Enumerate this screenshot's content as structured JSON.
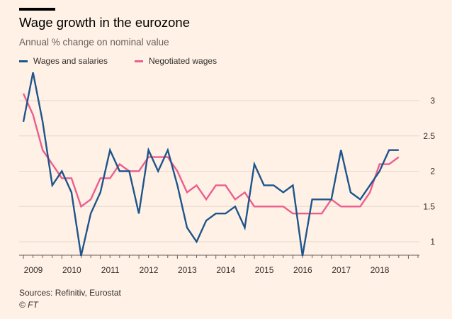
{
  "header": {
    "title": "Wage growth in the eurozone",
    "subtitle": "Annual % change on nominal value"
  },
  "legend": {
    "series_a": "Wages and salaries",
    "series_b": "Negotiated wages"
  },
  "footer": {
    "source": "Sources: Refinitiv, Eurostat",
    "credit": "© FT"
  },
  "colors": {
    "background": "#fff1e5",
    "wages_and_salaries": "#1e558c",
    "negotiated_wages": "#eb5e8d",
    "gridline": "#e3d7cc"
  },
  "chart_data": {
    "type": "line",
    "title": "Wage growth in the eurozone",
    "subtitle": "Annual % change on nominal value",
    "xlabel": "",
    "ylabel": "",
    "y_axis_position": "right",
    "ylim": [
      0.8,
      3.5
    ],
    "yticks": [
      "3",
      "2.5",
      "2",
      "1.5",
      "1"
    ],
    "ytick_values": [
      3,
      2.5,
      2,
      1.5,
      1
    ],
    "xlim": [
      2009.0,
      2019.25
    ],
    "xticks": [
      "2009",
      "2010",
      "2011",
      "2012",
      "2013",
      "2014",
      "2015",
      "2016",
      "2017",
      "2018"
    ],
    "grid": true,
    "legend_position": "top-left",
    "x": [
      2009.0,
      2009.25,
      2009.5,
      2009.75,
      2010.0,
      2010.25,
      2010.5,
      2010.75,
      2011.0,
      2011.25,
      2011.5,
      2011.75,
      2012.0,
      2012.25,
      2012.5,
      2012.75,
      2013.0,
      2013.25,
      2013.5,
      2013.75,
      2014.0,
      2014.25,
      2014.5,
      2014.75,
      2015.0,
      2015.25,
      2015.5,
      2015.75,
      2016.0,
      2016.25,
      2016.5,
      2016.75,
      2017.0,
      2017.25,
      2017.5,
      2017.75,
      2018.0,
      2018.25,
      2018.5,
      2018.75,
      2019.0
    ],
    "series": [
      {
        "name": "Wages and salaries",
        "values": [
          2.7,
          3.4,
          2.7,
          1.8,
          2.0,
          1.7,
          0.8,
          1.4,
          1.7,
          2.3,
          2.0,
          2.0,
          1.4,
          2.3,
          2.0,
          2.3,
          1.8,
          1.2,
          1.0,
          1.3,
          1.4,
          1.4,
          1.5,
          1.2,
          2.1,
          1.8,
          1.8,
          1.7,
          1.8,
          0.8,
          1.6,
          1.6,
          1.6,
          2.3,
          1.7,
          1.6,
          1.8,
          2.0,
          2.3,
          2.3,
          null
        ]
      },
      {
        "name": "Negotiated wages",
        "values": [
          3.1,
          2.8,
          2.3,
          2.1,
          1.9,
          1.9,
          1.5,
          1.6,
          1.9,
          1.9,
          2.1,
          2.0,
          2.0,
          2.2,
          2.2,
          2.2,
          2.0,
          1.7,
          1.8,
          1.6,
          1.8,
          1.8,
          1.6,
          1.7,
          1.5,
          1.5,
          1.5,
          1.5,
          1.4,
          1.4,
          1.4,
          1.4,
          1.6,
          1.5,
          1.5,
          1.5,
          1.7,
          2.1,
          2.1,
          2.2,
          null
        ]
      }
    ]
  }
}
